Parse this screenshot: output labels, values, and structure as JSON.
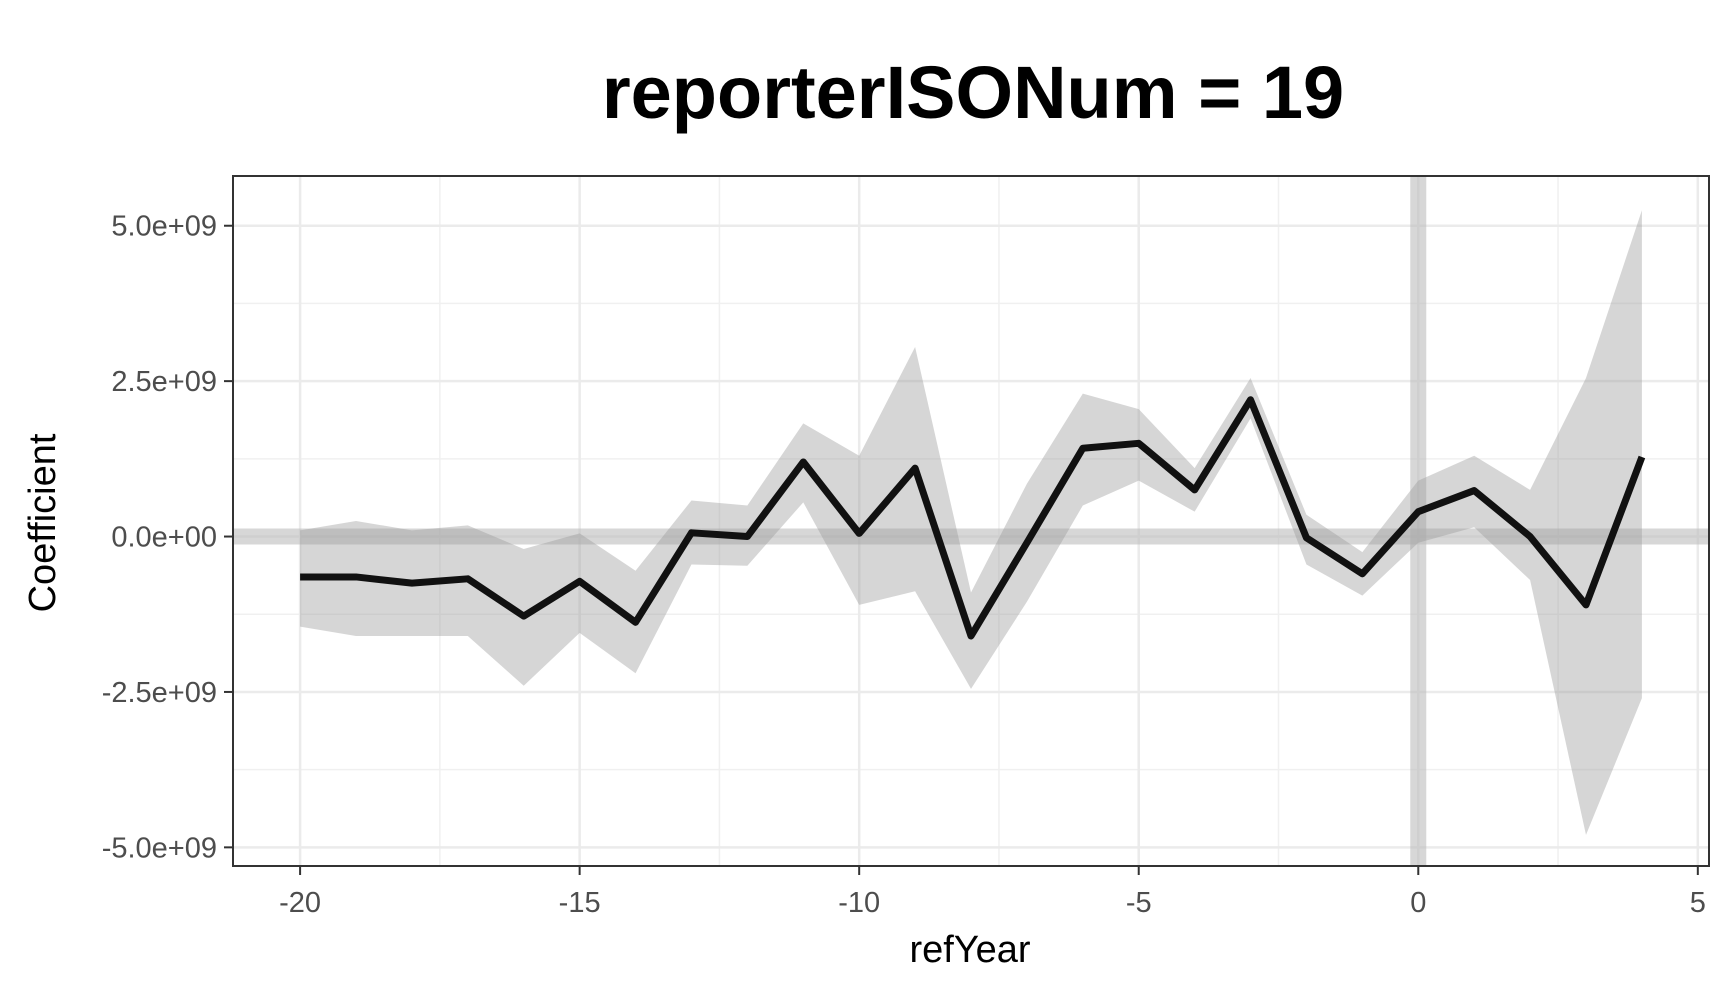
{
  "chart_data": {
    "type": "line",
    "title": "reporterISONum = 19",
    "xlabel": "refYear",
    "ylabel": "Coefficient",
    "xlim": [
      -21.2,
      5.2
    ],
    "ylim": [
      -5300000000.0,
      5800000000.0
    ],
    "x_ticks": [
      -20,
      -15,
      -10,
      -5,
      0,
      5
    ],
    "x_tick_labels": [
      "-20",
      "-15",
      "-10",
      "-5",
      "0",
      "5"
    ],
    "y_ticks": [
      5000000000.0,
      2500000000.0,
      0,
      -2500000000.0,
      -5000000000.0
    ],
    "y_tick_labels": [
      "5.0e+09",
      "2.5e+09",
      "0.0e+00",
      "-2.5e+09",
      "-5.0e+09"
    ],
    "grid": true,
    "reference_lines": {
      "horizontal_y": 0,
      "vertical_x": 0
    },
    "series": [
      {
        "x": [
          -20,
          -19,
          -18,
          -17,
          -16,
          -15,
          -14,
          -13,
          -12,
          -11,
          -10,
          -9,
          -8,
          -7,
          -6,
          -5,
          -4,
          -3,
          -2,
          -1,
          0,
          1,
          2,
          3,
          4
        ],
        "y": [
          -650000000.0,
          -650000000.0,
          -750000000.0,
          -680000000.0,
          -1280000000.0,
          -720000000.0,
          -1380000000.0,
          60000000.0,
          0,
          1200000000.0,
          50000000.0,
          1100000000.0,
          -1600000000.0,
          -100000000.0,
          1420000000.0,
          1500000000.0,
          750000000.0,
          2200000000.0,
          -20000000.0,
          -600000000.0,
          400000000.0,
          740000000.0,
          0,
          -1100000000.0,
          1280000000.0
        ],
        "lower": [
          -1450000000.0,
          -1600000000.0,
          -1600000000.0,
          -1600000000.0,
          -2400000000.0,
          -1550000000.0,
          -2200000000.0,
          -450000000.0,
          -470000000.0,
          550000000.0,
          -1100000000.0,
          -880000000.0,
          -2450000000.0,
          -1050000000.0,
          500000000.0,
          900000000.0,
          400000000.0,
          1900000000.0,
          -450000000.0,
          -950000000.0,
          -100000000.0,
          150000000.0,
          -700000000.0,
          -4800000000.0,
          -2600000000.0
        ],
        "upper": [
          100000000.0,
          250000000.0,
          100000000.0,
          180000000.0,
          -200000000.0,
          50000000.0,
          -550000000.0,
          580000000.0,
          500000000.0,
          1820000000.0,
          1300000000.0,
          3050000000.0,
          -900000000.0,
          850000000.0,
          2300000000.0,
          2050000000.0,
          1100000000.0,
          2550000000.0,
          350000000.0,
          -250000000.0,
          900000000.0,
          1300000000.0,
          750000000.0,
          2550000000.0,
          5250000000.0
        ]
      }
    ]
  }
}
